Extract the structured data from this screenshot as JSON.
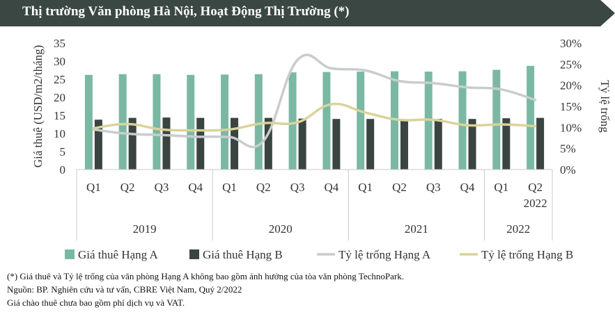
{
  "header": {
    "title": "Thị trường Văn phòng Hà Nội, Hoạt Động Thị Trường (*)",
    "colors": {
      "bar_bg": "#3b4743",
      "title_text": "#ffffff"
    }
  },
  "chart_data": {
    "type": "bar",
    "ylabel": "Giá thuê (USD/m2/tháng)",
    "y2label": "Tỷ lệ trống",
    "ylim": [
      0,
      35
    ],
    "y2lim": [
      0,
      30
    ],
    "yticks": [
      "0",
      "5",
      "10",
      "15",
      "20",
      "25",
      "30",
      "35"
    ],
    "y2ticks": [
      "0%",
      "5%",
      "10%",
      "15%",
      "20%",
      "25%",
      "30%"
    ],
    "categories": [
      "Q1",
      "Q2",
      "Q3",
      "Q4",
      "Q1",
      "Q2",
      "Q3",
      "Q4",
      "Q1",
      "Q2",
      "Q3",
      "Q4",
      "Q1",
      "Q2"
    ],
    "last_tick_extra": "2022",
    "year_groups": [
      {
        "label": "2019",
        "span": 4
      },
      {
        "label": "2020",
        "span": 4
      },
      {
        "label": "2021",
        "span": 4
      },
      {
        "label": "2022",
        "span": 2
      }
    ],
    "series": [
      {
        "name": "Giá thuê Hạng A",
        "kind": "bar",
        "axis": "left",
        "color": "#7bb8a4",
        "values": [
          26.2,
          26.4,
          26.4,
          26.2,
          26.3,
          26.4,
          26.9,
          27.0,
          27.1,
          27.2,
          27.1,
          27.2,
          27.6,
          28.7
        ]
      },
      {
        "name": "Giá thuê Hạng B",
        "kind": "bar",
        "axis": "left",
        "color": "#3a4440",
        "values": [
          13.8,
          14.3,
          14.4,
          14.3,
          14.3,
          14.3,
          14.1,
          14.0,
          14.0,
          13.9,
          14.0,
          14.0,
          14.2,
          14.3
        ]
      },
      {
        "name": "Tỷ lệ trống Hạng A",
        "kind": "line",
        "axis": "right",
        "color": "#c9ccce",
        "values": [
          9.5,
          8.5,
          8.2,
          7.8,
          7.7,
          6.8,
          26.0,
          24.0,
          23.5,
          21.0,
          20.5,
          19.5,
          19.0,
          16.5
        ]
      },
      {
        "name": "Tỷ lệ trống Hạng B",
        "kind": "line",
        "axis": "right",
        "color": "#d9d39a",
        "values": [
          9.8,
          10.8,
          9.5,
          9.3,
          9.5,
          11.0,
          11.2,
          15.5,
          13.5,
          11.8,
          11.8,
          10.5,
          10.7,
          10.3
        ]
      }
    ],
    "grid": false,
    "legend": "bottom"
  },
  "notes": {
    "line1": "(*) Giá thuê và Tỷ lệ trống của văn phòng Hạng A không bao gồm ảnh hưởng của tòa văn phòng TechnoPark.",
    "line2": "Nguồn: BP. Nghiên cứu và tư vấn, CBRE Việt Nam, Quý 2/2022",
    "line3": "Giá chào thuê chưa bao gồm phí dịch vụ và VAT."
  }
}
